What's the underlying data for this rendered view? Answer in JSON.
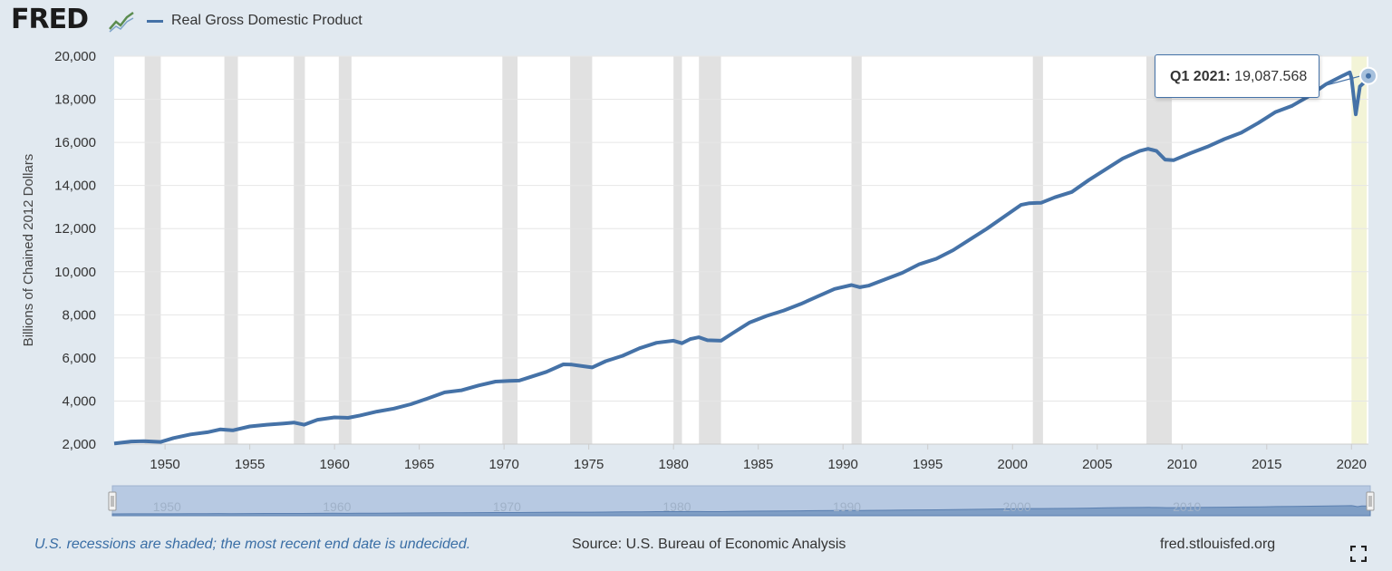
{
  "header": {
    "logo_text": "FRED",
    "logo_mark": "chart-mark-icon",
    "legend_label": "Real Gross Domestic Product"
  },
  "tooltip": {
    "label": "Q1 2021:",
    "value": "19,087.568"
  },
  "footer": {
    "note": "U.S. recessions are shaded; the most recent end date is undecided.",
    "source": "Source: U.S. Bureau of Economic Analysis",
    "site": "fred.stlouisfed.org",
    "fullscreen_icon": "fullscreen-icon"
  },
  "colors": {
    "line": "#4572a7",
    "recession": "#e1e1e1",
    "recession_current": "#f3f4d7",
    "background": "#e1e9f0",
    "plot_bg": "#ffffff"
  },
  "chart_data": {
    "type": "line",
    "title": "",
    "xlabel": "",
    "ylabel": "Billions of Chained 2012 Dollars",
    "series": [
      {
        "name": "Real Gross Domestic Product",
        "points": [
          [
            1947.0,
            2030
          ],
          [
            1948.0,
            2120
          ],
          [
            1948.75,
            2140
          ],
          [
            1949.75,
            2100
          ],
          [
            1950.5,
            2280
          ],
          [
            1951.5,
            2450
          ],
          [
            1952.5,
            2550
          ],
          [
            1953.25,
            2680
          ],
          [
            1954.0,
            2640
          ],
          [
            1955.0,
            2820
          ],
          [
            1956.0,
            2900
          ],
          [
            1957.0,
            2960
          ],
          [
            1957.6,
            3000
          ],
          [
            1958.2,
            2900
          ],
          [
            1959.0,
            3130
          ],
          [
            1960.0,
            3240
          ],
          [
            1960.8,
            3220
          ],
          [
            1961.5,
            3330
          ],
          [
            1962.5,
            3510
          ],
          [
            1963.5,
            3650
          ],
          [
            1964.5,
            3850
          ],
          [
            1965.5,
            4120
          ],
          [
            1966.5,
            4400
          ],
          [
            1967.5,
            4500
          ],
          [
            1968.5,
            4720
          ],
          [
            1969.5,
            4900
          ],
          [
            1970.3,
            4930
          ],
          [
            1970.9,
            4950
          ],
          [
            1971.5,
            5100
          ],
          [
            1972.5,
            5350
          ],
          [
            1973.5,
            5700
          ],
          [
            1974.0,
            5690
          ],
          [
            1974.8,
            5600
          ],
          [
            1975.2,
            5560
          ],
          [
            1976.0,
            5850
          ],
          [
            1977.0,
            6100
          ],
          [
            1978.0,
            6450
          ],
          [
            1979.0,
            6700
          ],
          [
            1980.0,
            6800
          ],
          [
            1980.5,
            6680
          ],
          [
            1981.0,
            6880
          ],
          [
            1981.5,
            6960
          ],
          [
            1982.0,
            6820
          ],
          [
            1982.8,
            6800
          ],
          [
            1983.5,
            7150
          ],
          [
            1984.5,
            7650
          ],
          [
            1985.5,
            7950
          ],
          [
            1986.5,
            8200
          ],
          [
            1987.5,
            8500
          ],
          [
            1988.5,
            8850
          ],
          [
            1989.5,
            9200
          ],
          [
            1990.5,
            9380
          ],
          [
            1991.0,
            9280
          ],
          [
            1991.5,
            9350
          ],
          [
            1992.5,
            9650
          ],
          [
            1993.5,
            9950
          ],
          [
            1994.5,
            10350
          ],
          [
            1995.5,
            10600
          ],
          [
            1996.5,
            11000
          ],
          [
            1997.5,
            11500
          ],
          [
            1998.5,
            12000
          ],
          [
            1999.5,
            12550
          ],
          [
            2000.5,
            13100
          ],
          [
            2001.0,
            13180
          ],
          [
            2001.7,
            13200
          ],
          [
            2002.5,
            13450
          ],
          [
            2003.5,
            13700
          ],
          [
            2004.5,
            14250
          ],
          [
            2005.5,
            14750
          ],
          [
            2006.5,
            15250
          ],
          [
            2007.5,
            15600
          ],
          [
            2008.0,
            15700
          ],
          [
            2008.5,
            15600
          ],
          [
            2009.0,
            15200
          ],
          [
            2009.5,
            15170
          ],
          [
            2010.5,
            15500
          ],
          [
            2011.5,
            15800
          ],
          [
            2012.5,
            16150
          ],
          [
            2013.5,
            16450
          ],
          [
            2014.5,
            16900
          ],
          [
            2015.5,
            17400
          ],
          [
            2016.5,
            17700
          ],
          [
            2017.5,
            18150
          ],
          [
            2018.5,
            18700
          ],
          [
            2019.5,
            19100
          ],
          [
            2019.9,
            19250
          ],
          [
            2020.0,
            19000
          ],
          [
            2020.25,
            17300
          ],
          [
            2020.5,
            18600
          ],
          [
            2020.75,
            18780
          ],
          [
            2021.0,
            19087.568
          ]
        ]
      }
    ],
    "xlim": [
      1947.0,
      2021.0
    ],
    "ylim": [
      2000,
      20000
    ],
    "xticks": [
      1950,
      1955,
      1960,
      1965,
      1970,
      1975,
      1980,
      1985,
      1990,
      1995,
      2000,
      2005,
      2010,
      2015,
      2020
    ],
    "yticks": [
      2000,
      4000,
      6000,
      8000,
      10000,
      12000,
      14000,
      16000,
      18000,
      20000
    ],
    "ytick_labels": [
      "2,000",
      "4,000",
      "6,000",
      "8,000",
      "10,000",
      "12,000",
      "14,000",
      "16,000",
      "18,000",
      "20,000"
    ],
    "recessions": [
      [
        1948.8,
        1949.75
      ],
      [
        1953.5,
        1954.3
      ],
      [
        1957.6,
        1958.25
      ],
      [
        1960.25,
        1961.0
      ],
      [
        1969.9,
        1970.8
      ],
      [
        1973.9,
        1975.2
      ],
      [
        1980.0,
        1980.5
      ],
      [
        1981.5,
        1982.8
      ],
      [
        1990.5,
        1991.1
      ],
      [
        2001.2,
        2001.8
      ],
      [
        2007.9,
        2009.4
      ],
      [
        2020.0,
        2020.9
      ]
    ],
    "navigator_ticks": [
      1950,
      1960,
      1970,
      1980,
      1990,
      2000,
      2010
    ],
    "grid": true,
    "legend": "top-left",
    "highlight_point": 2021.0
  }
}
